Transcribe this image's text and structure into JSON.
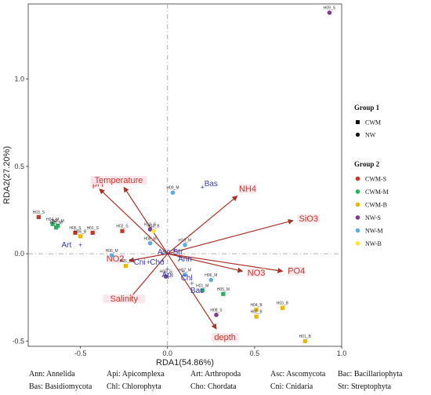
{
  "chart_data": {
    "type": "scatter",
    "xlabel": "RDA1(54.86%)",
    "ylabel": "RDA2(27.20%)",
    "xlim": [
      -0.8,
      1.0
    ],
    "ylim": [
      -0.53,
      1.43
    ],
    "xticks": [
      "-0.5",
      "0.0",
      "0.5",
      "1.0"
    ],
    "xtick_values": [
      -0.5,
      0.0,
      0.5,
      1.0
    ],
    "yticks": [
      "-0.5",
      "0.0",
      "0.5",
      "1.0"
    ],
    "ytick_values": [
      -0.5,
      0.0,
      0.5,
      1.0
    ],
    "zero_lines": true,
    "groups": {
      "CWM-S": "#c0392b",
      "CWM-M": "#27ae60",
      "CWM-B": "#e6b800",
      "NW-S": "#7d3c98",
      "NW-M": "#5dade2",
      "NW-B": "#f1e83a"
    },
    "samples": [
      {
        "label": "H09_S",
        "x": 0.93,
        "y": 1.38,
        "group": "NW-S",
        "shape": "circle"
      },
      {
        "label": "H03_S",
        "x": -0.74,
        "y": 0.21,
        "group": "CWM-S",
        "shape": "square"
      },
      {
        "label": "H04_M",
        "x": -0.66,
        "y": 0.17,
        "group": "CWM-M",
        "shape": "square"
      },
      {
        "label": "H06_M",
        "x": -0.63,
        "y": 0.16,
        "group": "CWM-M",
        "shape": "square"
      },
      {
        "label": "H05_M",
        "x": -0.64,
        "y": 0.15,
        "group": "CWM-M",
        "shape": "square"
      },
      {
        "label": "H01_S",
        "x": -0.43,
        "y": 0.12,
        "group": "CWM-S",
        "shape": "square"
      },
      {
        "label": "H05_S",
        "x": -0.53,
        "y": 0.12,
        "group": "CWM-S",
        "shape": "square"
      },
      {
        "label": "H06_B",
        "x": -0.5,
        "y": 0.1,
        "group": "CWM-B",
        "shape": "square"
      },
      {
        "label": "H02_S",
        "x": -0.26,
        "y": 0.13,
        "group": "CWM-S",
        "shape": "square"
      },
      {
        "label": "H09_M",
        "x": 0.03,
        "y": 0.35,
        "group": "NW-M",
        "shape": "circle"
      },
      {
        "label": "H10_S",
        "x": -0.1,
        "y": 0.14,
        "group": "NW-S",
        "shape": "circle"
      },
      {
        "label": "H10_B",
        "x": -0.08,
        "y": 0.13,
        "group": "NW-B",
        "shape": "circle"
      },
      {
        "label": "H08_M",
        "x": -0.1,
        "y": 0.06,
        "group": "NW-M",
        "shape": "circle"
      },
      {
        "label": "H10_M",
        "x": 0.1,
        "y": 0.05,
        "group": "NW-M",
        "shape": "circle"
      },
      {
        "label": "H05_B",
        "x": -0.24,
        "y": -0.07,
        "group": "CWM-B",
        "shape": "square"
      },
      {
        "label": "H06_M",
        "x": -0.32,
        "y": -0.01,
        "group": "NW-M",
        "shape": "circle"
      },
      {
        "label": "H07_M",
        "x": 0.1,
        "y": -0.12,
        "group": "NW-M",
        "shape": "circle"
      },
      {
        "label": "H06_S",
        "x": -0.01,
        "y": -0.13,
        "group": "NW-S",
        "shape": "circle"
      },
      {
        "label": "H06_M",
        "x": 0.25,
        "y": -0.15,
        "group": "NW-M",
        "shape": "circle"
      },
      {
        "label": "H01_M",
        "x": 0.2,
        "y": -0.21,
        "group": "CWM-M",
        "shape": "square"
      },
      {
        "label": "H05_M",
        "x": 0.32,
        "y": -0.23,
        "group": "CWM-M",
        "shape": "square"
      },
      {
        "label": "H08_S",
        "x": 0.28,
        "y": -0.35,
        "group": "NW-S",
        "shape": "circle"
      },
      {
        "label": "H04_B",
        "x": 0.51,
        "y": -0.32,
        "group": "CWM-B",
        "shape": "square"
      },
      {
        "label": "H02_B",
        "x": 0.51,
        "y": -0.36,
        "group": "CWM-B",
        "shape": "square"
      },
      {
        "label": "H03_B",
        "x": 0.66,
        "y": -0.31,
        "group": "CWM-B",
        "shape": "square"
      },
      {
        "label": "H01_B",
        "x": 0.79,
        "y": -0.5,
        "group": "CWM-B",
        "shape": "square"
      }
    ],
    "env_vectors": [
      {
        "name": "pH",
        "x": -0.39,
        "y": 0.37,
        "lx": -0.4,
        "ly": 0.39
      },
      {
        "name": "Temperature",
        "x": -0.25,
        "y": 0.38,
        "lx": -0.28,
        "ly": 0.41
      },
      {
        "name": "NH4",
        "x": 0.4,
        "y": 0.33,
        "lx": 0.46,
        "ly": 0.36
      },
      {
        "name": "SiO3",
        "x": 0.72,
        "y": 0.19,
        "lx": 0.81,
        "ly": 0.19
      },
      {
        "name": "PO4",
        "x": 0.66,
        "y": -0.1,
        "lx": 0.74,
        "ly": -0.11
      },
      {
        "name": "NO3",
        "x": 0.43,
        "y": -0.1,
        "lx": 0.51,
        "ly": -0.12
      },
      {
        "name": "NO2",
        "x": -0.22,
        "y": -0.04,
        "lx": -0.3,
        "ly": -0.04
      },
      {
        "name": "Salinity",
        "x": -0.22,
        "y": -0.26,
        "lx": -0.25,
        "ly": -0.27
      },
      {
        "name": "depth",
        "x": 0.28,
        "y": -0.43,
        "lx": 0.33,
        "ly": -0.49
      }
    ],
    "species": [
      {
        "abbr": "Bas",
        "x": 0.2,
        "y": 0.38,
        "lx": 0.25,
        "ly": 0.4
      },
      {
        "abbr": "Art",
        "x": -0.5,
        "y": 0.05,
        "lx": -0.58,
        "ly": 0.05
      },
      {
        "abbr": "Cni",
        "x": -0.11,
        "y": -0.05,
        "lx": -0.16,
        "ly": -0.05
      },
      {
        "abbr": "Asc",
        "x": -0.03,
        "y": 0.0,
        "lx": -0.02,
        "ly": 0.01
      },
      {
        "abbr": "Str",
        "x": 0.04,
        "y": 0.02,
        "lx": 0.06,
        "ly": 0.01
      },
      {
        "abbr": "Ann",
        "x": 0.07,
        "y": -0.02,
        "lx": 0.1,
        "ly": -0.03
      },
      {
        "abbr": "Cho",
        "x": -0.03,
        "y": -0.04,
        "lx": -0.06,
        "ly": -0.05
      },
      {
        "abbr": "Chl",
        "x": 0.09,
        "y": -0.1,
        "lx": 0.11,
        "ly": -0.14
      },
      {
        "abbr": "Api",
        "x": 0.0,
        "y": -0.09,
        "lx": 0.0,
        "ly": -0.12
      },
      {
        "abbr": "Bac",
        "x": 0.14,
        "y": -0.17,
        "lx": 0.17,
        "ly": -0.21
      }
    ]
  },
  "legend": {
    "group1_title": "Group 1",
    "group1": [
      {
        "label": "CWM",
        "shape": "square"
      },
      {
        "label": "NW",
        "shape": "circle"
      }
    ],
    "group2_title": "Group 2",
    "group2": [
      {
        "label": "CWM-S",
        "color": "#c0392b"
      },
      {
        "label": "CWM-M",
        "color": "#27ae60"
      },
      {
        "label": "CWM-B",
        "color": "#e6b800"
      },
      {
        "label": "NW-S",
        "color": "#7d3c98"
      },
      {
        "label": "NW-M",
        "color": "#5dade2"
      },
      {
        "label": "NW-B",
        "color": "#f1e83a"
      }
    ]
  },
  "footnote": [
    [
      "Ann: Annelida",
      "Api: Apicomplexa",
      "Art: Arthropoda",
      "Asc: Ascomycota",
      "Bac: Bacillariophyta"
    ],
    [
      "Bas: Basidiomycota",
      "Chl: Chlorophyta",
      "Cho: Chordata",
      "Cni: Cnidaria",
      "Str: Streptophyta"
    ]
  ]
}
